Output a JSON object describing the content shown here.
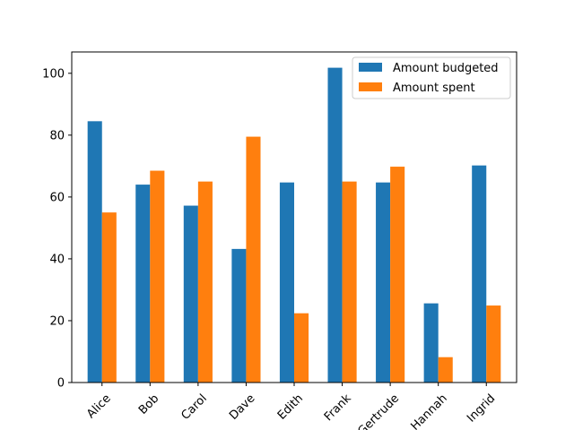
{
  "chart_data": {
    "type": "bar",
    "title": "",
    "xlabel": "",
    "ylabel": "",
    "categories": [
      "Alice",
      "Bob",
      "Carol",
      "Dave",
      "Edith",
      "Frank",
      "Gertrude",
      "Hannah",
      "Ingrid"
    ],
    "series": [
      {
        "name": "Amount budgeted",
        "color": "#1f77b4",
        "values": [
          84.5,
          64,
          57.2,
          43.2,
          64.7,
          101.8,
          64.7,
          25.6,
          70.2
        ]
      },
      {
        "name": "Amount spent",
        "color": "#ff7f0e",
        "values": [
          55,
          68.5,
          65,
          79.5,
          22.4,
          65,
          69.8,
          8.2,
          24.9
        ]
      }
    ],
    "ylim": [
      0,
      106.9
    ],
    "yticks": [
      0,
      20,
      40,
      60,
      80,
      100
    ],
    "legend_position": "top-right",
    "grid": false,
    "x_tick_rotation": 45
  }
}
